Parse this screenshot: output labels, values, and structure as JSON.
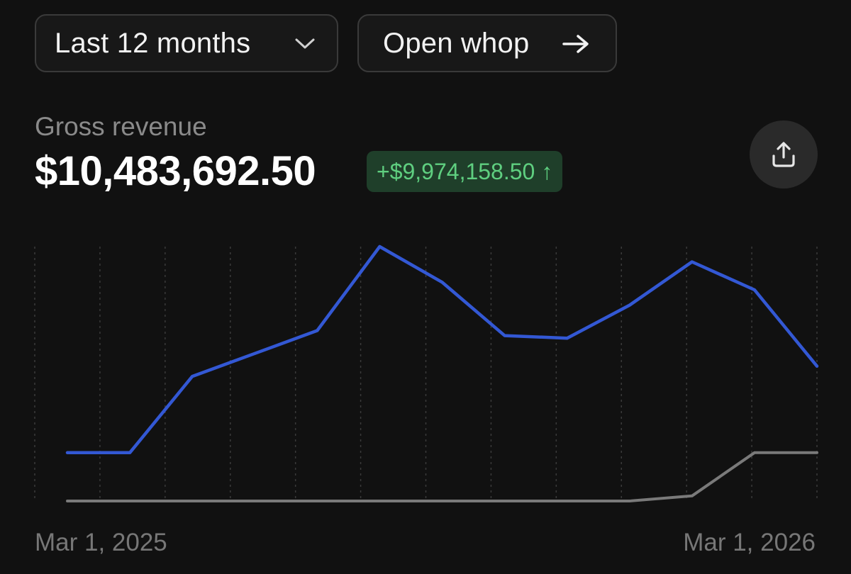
{
  "controls": {
    "range_label": "Last 12 months",
    "open_label": "Open whop"
  },
  "metric": {
    "label": "Gross revenue",
    "value": "$10,483,692.50",
    "delta": "+$9,974,158.50 ↑"
  },
  "colors": {
    "primary_series": "#3358d4",
    "comparison_series": "#7a7a7a",
    "delta_text": "#5fcf80",
    "delta_bg": "#1f3f2a"
  },
  "chart_data": {
    "type": "line",
    "x_start_label": "Mar 1, 2025",
    "x_end_label": "Mar 1, 2026",
    "x": [
      "Mar 1, 2025",
      "Apr 1, 2025",
      "May 1, 2025",
      "Jun 1, 2025",
      "Jul 1, 2025",
      "Aug 1, 2025",
      "Sep 1, 2025",
      "Oct 1, 2025",
      "Nov 1, 2025",
      "Dec 1, 2025",
      "Jan 1, 2026",
      "Feb 1, 2026",
      "Mar 1, 2026"
    ],
    "ylim": [
      0,
      1
    ],
    "series": [
      {
        "values": [
          0.19,
          0.19,
          0.49,
          0.58,
          0.67,
          1.0,
          0.86,
          0.65,
          0.64,
          0.77,
          0.94,
          0.83,
          0.53
        ]
      },
      {
        "values": [
          0.0,
          0.0,
          0.0,
          0.0,
          0.0,
          0.0,
          0.0,
          0.0,
          0.0,
          0.0,
          0.02,
          0.19,
          0.19
        ]
      }
    ],
    "gridlines": "vertical dotted",
    "legend": "none"
  }
}
